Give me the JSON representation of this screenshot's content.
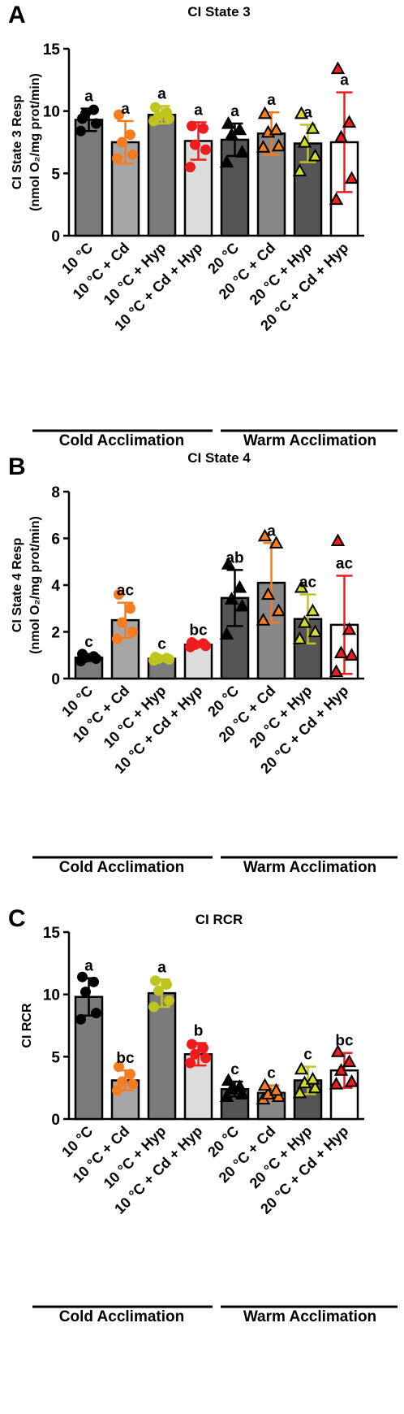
{
  "figure": {
    "background": "#ffffff",
    "group_labels": [
      "Cold  Acclimation",
      "Warm Acclimation"
    ]
  },
  "chart_data": [
    {
      "type": "bar",
      "panel_label": "A",
      "title": "CI State 3",
      "ylabel": [
        "CI State 3 Resp",
        "(nmol O₂/mg prot/min)"
      ],
      "ylim": [
        0,
        15
      ],
      "yticks": [
        0,
        5,
        10,
        15
      ],
      "categories": [
        "10 °C",
        "10 °C + Cd",
        "10 °C + Hyp",
        "10 °C + Cd + Hyp",
        "20 °C",
        "20 °C + Cd",
        "20 °C + Hyp",
        "20 °C + Cd + Hyp"
      ],
      "values": [
        9.3,
        7.5,
        9.7,
        7.6,
        7.7,
        8.2,
        7.4,
        7.5
      ],
      "errors": [
        0.9,
        1.7,
        0.7,
        1.5,
        1.3,
        1.7,
        1.5,
        4.0
      ],
      "letters": [
        "a",
        "a",
        "a",
        "a",
        "a",
        "a",
        "a",
        "a"
      ],
      "points": [
        [
          8.4,
          9.0,
          9.8,
          10.1,
          9.4
        ],
        [
          6.2,
          6.5,
          7.5,
          8.1,
          9.7
        ],
        [
          9.2,
          9.4,
          9.6,
          9.9,
          10.3
        ],
        [
          5.5,
          6.9,
          7.3,
          8.6,
          8.8
        ],
        [
          5.9,
          6.7,
          8.1,
          8.5,
          9.0
        ],
        [
          7.1,
          7.2,
          8.3,
          8.5,
          9.8
        ],
        [
          5.2,
          6.4,
          7.5,
          8.6,
          9.8
        ],
        [
          2.9,
          4.6,
          7.9,
          9.1,
          13.4
        ]
      ]
    },
    {
      "type": "bar",
      "panel_label": "B",
      "title": "CI State 4",
      "ylabel": [
        "CI State 4 Resp",
        "(nmol O₂/mg prot/min)"
      ],
      "ylim": [
        0,
        8
      ],
      "yticks": [
        0,
        2,
        4,
        6,
        8
      ],
      "categories": [
        "10 °C",
        "10 °C + Cd",
        "10 °C + Hyp",
        "10 °C + Cd + Hyp",
        "20 °C",
        "20 °C + Cd",
        "20 °C + Hyp",
        "20 °C + Cd + Hyp"
      ],
      "values": [
        0.9,
        2.5,
        0.85,
        1.45,
        3.45,
        4.1,
        2.55,
        2.3
      ],
      "errors": [
        0.15,
        0.75,
        0.1,
        0.1,
        1.2,
        1.7,
        1.05,
        2.1
      ],
      "letters": [
        "c",
        "ac",
        "c",
        "bc",
        "ab",
        "a",
        "ac",
        "ac"
      ],
      "points": [
        [
          0.75,
          0.85,
          0.9,
          0.95,
          1.05
        ],
        [
          1.7,
          2.0,
          2.4,
          3.0,
          3.6
        ],
        [
          0.78,
          0.82,
          0.85,
          0.88,
          0.92
        ],
        [
          1.35,
          1.4,
          1.45,
          1.5,
          1.55
        ],
        [
          1.9,
          3.1,
          3.4,
          3.9,
          4.9
        ],
        [
          2.5,
          2.9,
          3.6,
          5.8,
          6.1
        ],
        [
          1.7,
          2.0,
          2.4,
          2.9,
          3.9
        ],
        [
          0.3,
          1.0,
          1.1,
          2.1,
          5.9
        ]
      ]
    },
    {
      "type": "bar",
      "panel_label": "C",
      "title": "CI RCR",
      "ylabel": [
        "CI RCR"
      ],
      "ylim": [
        0,
        15
      ],
      "yticks": [
        0,
        5,
        10,
        15
      ],
      "categories": [
        "10 °C",
        "10 °C + Cd",
        "10 °C + Hyp",
        "10 °C + Cd + Hyp",
        "20 °C",
        "20 °C + Cd",
        "20 °C + Hyp",
        "20 °C + Cd + Hyp"
      ],
      "values": [
        9.8,
        3.1,
        10.1,
        5.2,
        2.4,
        2.1,
        3.1,
        3.9
      ],
      "errors": [
        1.5,
        0.8,
        1.1,
        0.9,
        0.6,
        0.6,
        1.1,
        1.4
      ],
      "letters": [
        "a",
        "bc",
        "a",
        "b",
        "c",
        "c",
        "c",
        "bc"
      ],
      "points": [
        [
          8.0,
          8.5,
          10.2,
          11.0,
          11.4
        ],
        [
          2.3,
          2.8,
          3.0,
          3.6,
          4.2
        ],
        [
          9.0,
          9.5,
          10.3,
          10.8,
          11.1
        ],
        [
          4.5,
          4.9,
          5.2,
          5.7,
          6.0
        ],
        [
          1.8,
          2.0,
          2.4,
          2.6,
          3.1
        ],
        [
          1.6,
          1.8,
          2.0,
          2.3,
          2.7
        ],
        [
          2.1,
          2.5,
          2.9,
          3.2,
          4.0
        ],
        [
          2.8,
          3.0,
          3.9,
          4.6,
          5.4
        ]
      ]
    }
  ],
  "series_style": {
    "bar_fills": [
      "#7b7b7b",
      "#a6a6a6",
      "#7b7b7b",
      "#dcdcdc",
      "#555555",
      "#888888",
      "#555555",
      "#ffffff"
    ],
    "point_colors": [
      "#000000",
      "#f57c1f",
      "#bfc41e",
      "#ee1c1c",
      "#000000",
      "#f57c1f",
      "#bfc41e",
      "#ee1c1c"
    ],
    "point_shapes": [
      "circle",
      "circle",
      "circle",
      "circle",
      "triangle",
      "triangle",
      "triangle",
      "triangle"
    ],
    "triangle_fills": [
      "#000000",
      "#f57c1f",
      "#d6dc2a",
      "#ee1c1c"
    ]
  }
}
